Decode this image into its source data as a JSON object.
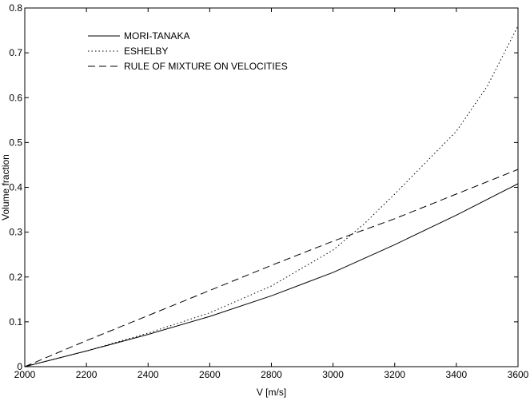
{
  "chart_data": {
    "type": "line",
    "xlabel": "V [m/s]",
    "ylabel": "Volume fraction",
    "xlim": [
      2000,
      3600
    ],
    "ylim": [
      0,
      0.8
    ],
    "xticks": [
      2000,
      2200,
      2400,
      2600,
      2800,
      3000,
      3200,
      3400,
      3600
    ],
    "yticks": [
      0,
      0.1,
      0.2,
      0.3,
      0.4,
      0.5,
      0.6,
      0.7,
      0.8
    ],
    "grid": false,
    "legend_position": "top-left",
    "series": [
      {
        "name": "MORI-TANAKA",
        "line_style": "solid",
        "color": "#000000",
        "x": [
          2000,
          2200,
          2400,
          2600,
          2800,
          3000,
          3200,
          3400,
          3600
        ],
        "y": [
          0,
          0.035,
          0.072,
          0.112,
          0.158,
          0.21,
          0.272,
          0.338,
          0.408
        ]
      },
      {
        "name": "ESHELBY",
        "line_style": "dotted",
        "color": "#000000",
        "x": [
          2000,
          2200,
          2400,
          2600,
          2800,
          3000,
          3100,
          3200,
          3300,
          3400,
          3500,
          3600
        ],
        "y": [
          0,
          0.035,
          0.075,
          0.12,
          0.18,
          0.26,
          0.318,
          0.385,
          0.455,
          0.525,
          0.625,
          0.76
        ]
      },
      {
        "name": "RULE OF MIXTURE ON VELOCITIES",
        "line_style": "dashed",
        "color": "#000000",
        "x": [
          2000,
          2200,
          2400,
          2600,
          2800,
          3000,
          3200,
          3400,
          3600
        ],
        "y": [
          0,
          0.058,
          0.114,
          0.17,
          0.226,
          0.28,
          0.33,
          0.385,
          0.44
        ]
      }
    ]
  }
}
